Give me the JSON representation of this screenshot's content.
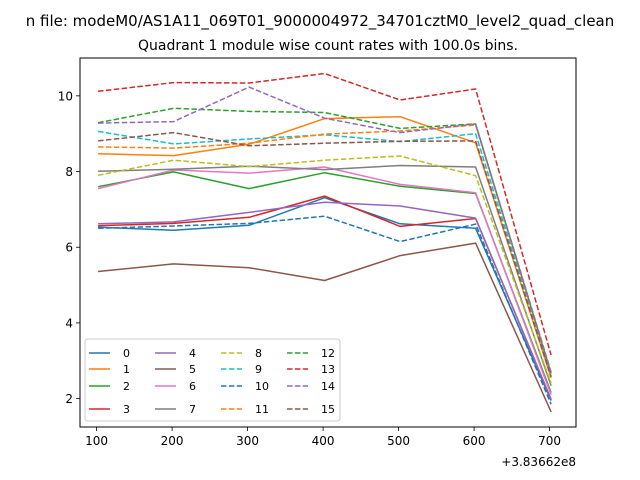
{
  "figure": {
    "suptitle": "n file: modeM0/AS1A11_069T01_9000004972_34701cztM0_level2_quad_clean"
  },
  "chart_data": {
    "type": "line",
    "title": "Quadrant 1 module wise count rates with 100.0s bins.",
    "xlabel": "",
    "ylabel": "",
    "x_offset_label": "+3.83662e8",
    "x": [
      102,
      202,
      302,
      402,
      502,
      602,
      702
    ],
    "xlim": [
      78,
      735
    ],
    "ylim": [
      1.25,
      11.0
    ],
    "xticks": [
      100,
      200,
      300,
      400,
      500,
      600,
      700
    ],
    "yticks": [
      2,
      4,
      6,
      8,
      10
    ],
    "grid": false,
    "legend": {
      "placement": "lower-left",
      "columns": 4
    },
    "series": [
      {
        "name": "0",
        "color": "#1f77b4",
        "dash": "solid",
        "values": [
          6.53,
          6.45,
          6.58,
          7.31,
          6.62,
          6.5,
          1.95
        ]
      },
      {
        "name": "1",
        "color": "#ff7f0e",
        "dash": "solid",
        "values": [
          8.47,
          8.42,
          8.72,
          9.4,
          9.45,
          8.76,
          2.55
        ]
      },
      {
        "name": "2",
        "color": "#2ca02c",
        "dash": "solid",
        "values": [
          7.6,
          7.99,
          7.55,
          7.97,
          7.61,
          7.42,
          2.16
        ]
      },
      {
        "name": "3",
        "color": "#d62728",
        "dash": "solid",
        "values": [
          6.57,
          6.63,
          6.79,
          7.35,
          6.55,
          6.76,
          1.98
        ]
      },
      {
        "name": "4",
        "color": "#9467bd",
        "dash": "solid",
        "values": [
          6.62,
          6.67,
          6.92,
          7.19,
          7.09,
          6.77,
          1.98
        ]
      },
      {
        "name": "5",
        "color": "#8c564b",
        "dash": "solid",
        "values": [
          5.36,
          5.56,
          5.46,
          5.12,
          5.78,
          6.11,
          1.65
        ]
      },
      {
        "name": "6",
        "color": "#e377c2",
        "dash": "solid",
        "values": [
          7.55,
          8.04,
          7.96,
          8.12,
          7.66,
          7.44,
          2.1
        ]
      },
      {
        "name": "7",
        "color": "#7f7f7f",
        "dash": "solid",
        "values": [
          8.01,
          8.06,
          8.14,
          8.05,
          8.16,
          8.12,
          2.34
        ]
      },
      {
        "name": "8",
        "color": "#bcbd22",
        "dash": "dashed",
        "values": [
          7.9,
          8.3,
          8.13,
          8.3,
          8.41,
          7.89,
          2.41
        ]
      },
      {
        "name": "9",
        "color": "#17becf",
        "dash": "dashed",
        "values": [
          9.06,
          8.73,
          8.86,
          8.97,
          8.79,
          9.0,
          2.6
        ]
      },
      {
        "name": "10",
        "color": "#1f77b4",
        "dash": "dashed",
        "values": [
          6.5,
          6.56,
          6.63,
          6.82,
          6.15,
          6.61,
          1.85
        ]
      },
      {
        "name": "11",
        "color": "#ff7f0e",
        "dash": "dashed",
        "values": [
          8.65,
          8.62,
          8.75,
          8.99,
          9.07,
          9.23,
          2.63
        ]
      },
      {
        "name": "12",
        "color": "#2ca02c",
        "dash": "dashed",
        "values": [
          9.29,
          9.67,
          9.59,
          9.56,
          9.14,
          9.26,
          2.66
        ]
      },
      {
        "name": "13",
        "color": "#d62728",
        "dash": "dashed",
        "values": [
          10.12,
          10.35,
          10.34,
          10.59,
          9.89,
          10.18,
          3.15
        ]
      },
      {
        "name": "14",
        "color": "#9467bd",
        "dash": "dashed",
        "values": [
          9.28,
          9.32,
          10.23,
          9.41,
          9.03,
          9.26,
          2.7
        ]
      },
      {
        "name": "15",
        "color": "#8c564b",
        "dash": "dashed",
        "values": [
          8.81,
          9.03,
          8.68,
          8.75,
          8.8,
          8.81,
          2.57
        ]
      }
    ]
  }
}
